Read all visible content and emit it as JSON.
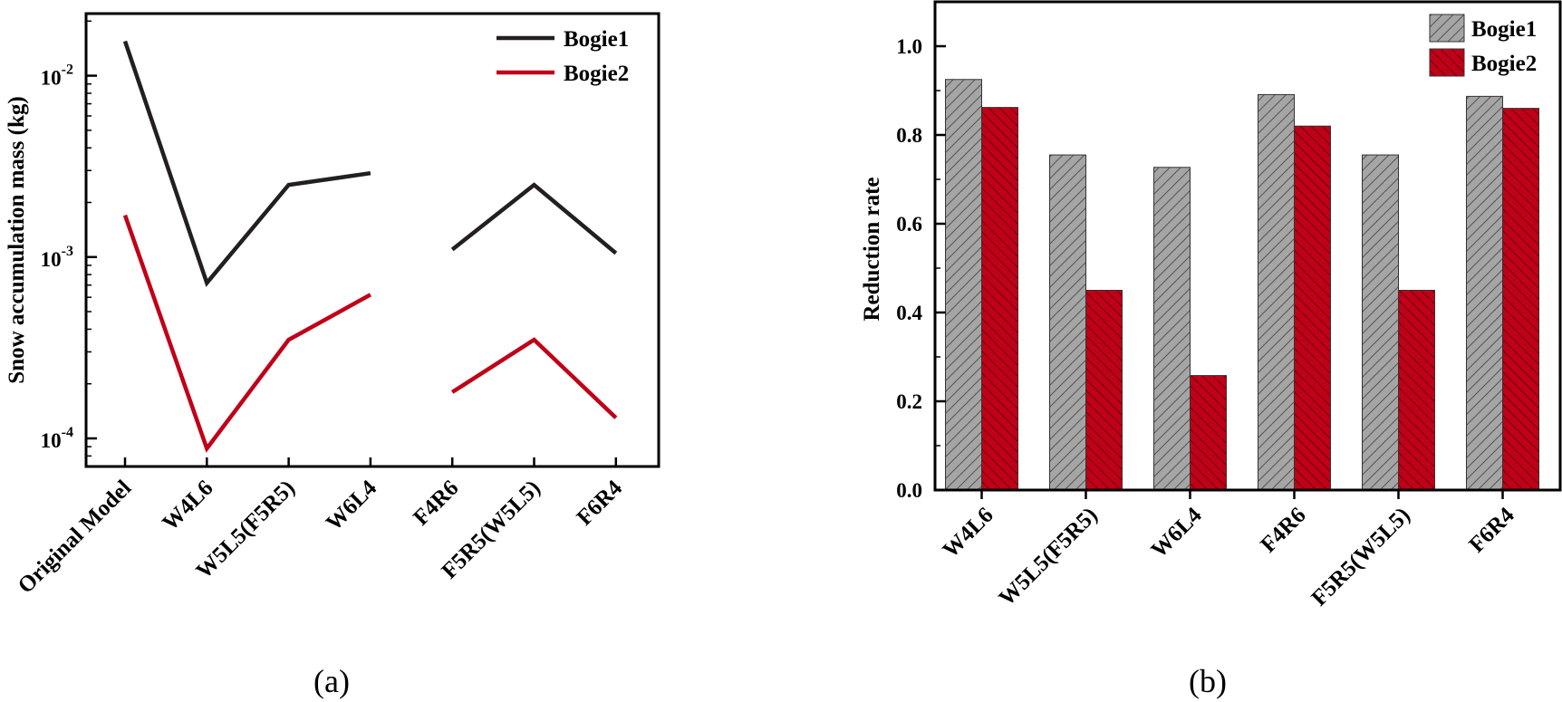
{
  "chart_data": [
    {
      "type": "line",
      "panel_label": "(a)",
      "title": "",
      "xlabel": "",
      "ylabel": "Snow accumulation mass (kg)",
      "yscale": "log",
      "ylim": [
        7e-05,
        0.022
      ],
      "yticks": [
        {
          "value": 0.0001,
          "base": "10",
          "exp": "-4"
        },
        {
          "value": 0.001,
          "base": "10",
          "exp": "-3"
        },
        {
          "value": 0.01,
          "base": "10",
          "exp": "-2"
        }
      ],
      "categories": [
        "Original Model",
        "W4L6",
        "W5L5(F5R5)",
        "W6L4",
        "F4R6",
        "F5R5(W5L5)",
        "F6R4"
      ],
      "series": [
        {
          "name": "Bogie1",
          "color": "#231f20",
          "values": [
            0.0155,
            0.00072,
            0.0025,
            0.0029,
            0.0011,
            0.0025,
            0.00105
          ]
        },
        {
          "name": "Bogie2",
          "color": "#c00018",
          "values": [
            0.0017,
            8.8e-05,
            0.00035,
            0.00062,
            0.00018,
            0.00035,
            0.00013
          ]
        }
      ],
      "segments": [
        [
          0,
          3
        ],
        [
          4,
          6
        ]
      ],
      "legend_position": "top-right",
      "grid": false
    },
    {
      "type": "bar",
      "panel_label": "(b)",
      "title": "",
      "xlabel": "",
      "ylabel": "Reduction rate",
      "ylim": [
        0.0,
        1.1
      ],
      "yticks": [
        "0.0",
        "0.2",
        "0.4",
        "0.6",
        "0.8",
        "1.0"
      ],
      "categories": [
        "W4L6",
        "W5L5(F5R5)",
        "W6L4",
        "F4R6",
        "F5R5(W5L5)",
        "F6R4"
      ],
      "series": [
        {
          "name": "Bogie1",
          "color": "#a5a5a5",
          "hatch": "forward-diagonal",
          "values": [
            0.925,
            0.755,
            0.727,
            0.891,
            0.755,
            0.887
          ]
        },
        {
          "name": "Bogie2",
          "color": "#c00018",
          "hatch": "backward-diagonal",
          "values": [
            0.862,
            0.45,
            0.258,
            0.82,
            0.45,
            0.86
          ]
        }
      ],
      "legend_position": "top-right",
      "grid": false
    }
  ]
}
